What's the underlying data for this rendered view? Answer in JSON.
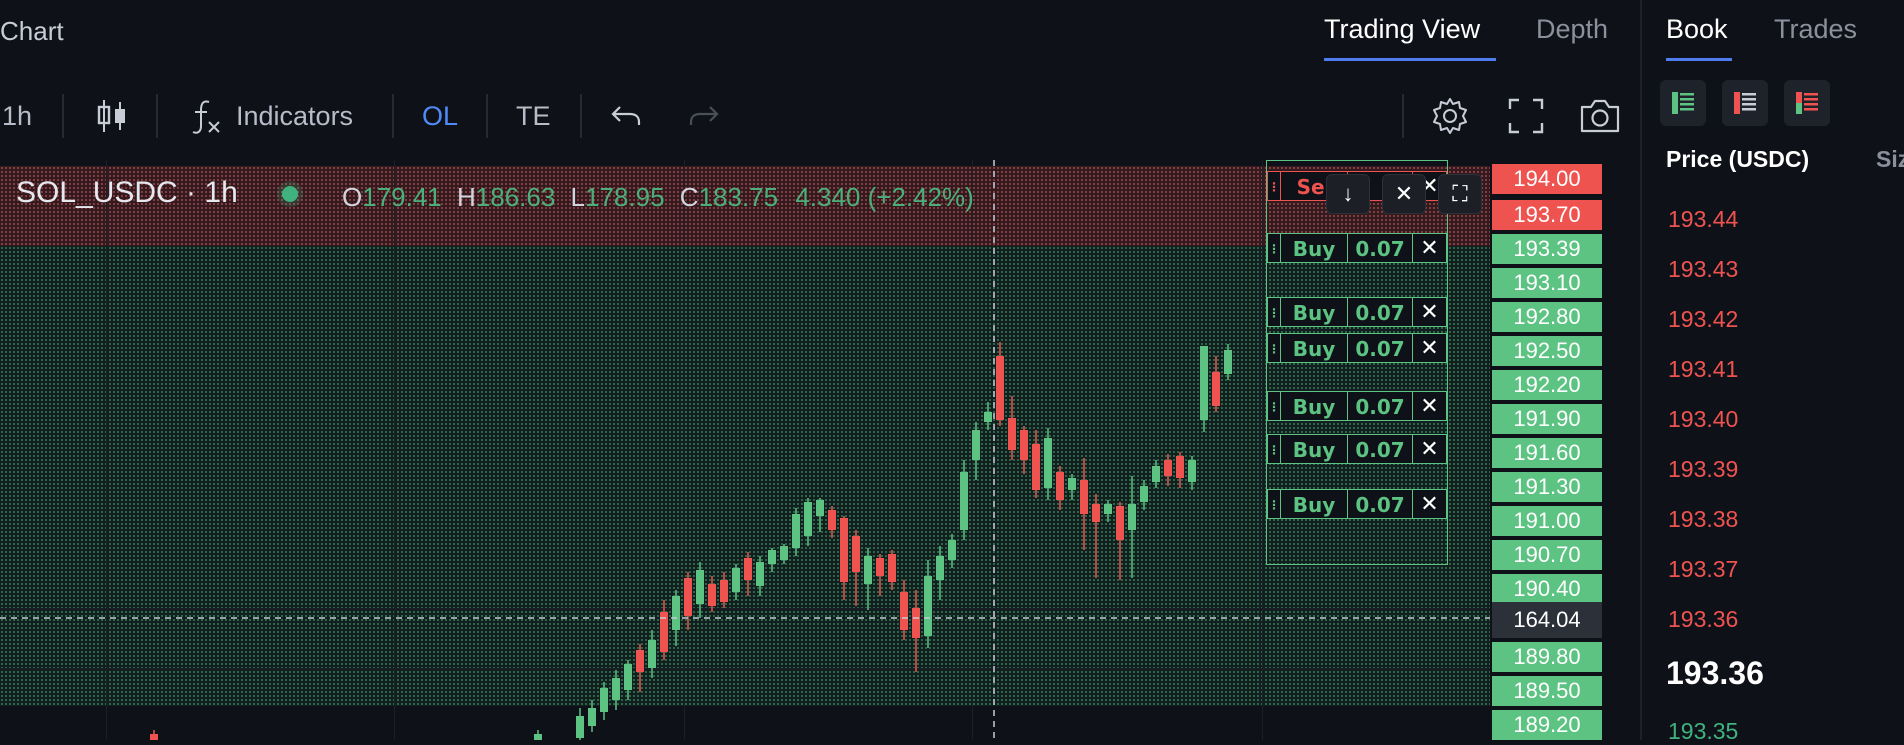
{
  "header": {
    "chart_label": "Chart",
    "tabs": [
      {
        "label": "Trading View",
        "active": true
      },
      {
        "label": "Depth",
        "active": false
      }
    ]
  },
  "toolbar": {
    "interval": "1h",
    "indicators_label": "Indicators",
    "ol_label": "OL",
    "te_label": "TE"
  },
  "legend": {
    "symbol": "SOL_USDC · 1h",
    "open_key": "O",
    "open": "179.41",
    "high_key": "H",
    "high": "186.63",
    "low_key": "L",
    "low": "178.95",
    "close_key": "C",
    "close": "183.75",
    "change": "4.340 (+2.42%)"
  },
  "price_axis": [
    {
      "label": "194.00",
      "style": "red"
    },
    {
      "label": "193.70",
      "style": "red"
    },
    {
      "label": "193.39",
      "style": "green"
    },
    {
      "label": "193.10",
      "style": "green"
    },
    {
      "label": "192.80",
      "style": "green"
    },
    {
      "label": "192.50",
      "style": "green"
    },
    {
      "label": "192.20",
      "style": "green"
    },
    {
      "label": "191.90",
      "style": "green"
    },
    {
      "label": "191.60",
      "style": "green"
    },
    {
      "label": "191.30",
      "style": "green"
    },
    {
      "label": "191.00",
      "style": "green"
    },
    {
      "label": "190.70",
      "style": "green"
    },
    {
      "label": "190.40",
      "style": "green"
    },
    {
      "label": "164.04",
      "style": "dark"
    },
    {
      "label": "189.80",
      "style": "green"
    },
    {
      "label": "189.50",
      "style": "green"
    },
    {
      "label": "189.20",
      "style": "green"
    }
  ],
  "orders": {
    "sell_label": "Sel",
    "rows": [
      {
        "side": "Buy",
        "qty": "0.07"
      },
      {
        "side": "Buy",
        "qty": "0.07"
      },
      {
        "side": "Buy",
        "qty": "0.07"
      },
      {
        "side": "Buy",
        "qty": "0.07"
      },
      {
        "side": "Buy",
        "qty": "0.07"
      },
      {
        "side": "Buy",
        "qty": "0.07"
      }
    ]
  },
  "book": {
    "tabs": [
      {
        "label": "Book",
        "active": true
      },
      {
        "label": "Trades",
        "active": false
      }
    ],
    "price_header": "Price (USDC)",
    "size_header": "Siz",
    "asks": [
      "193.44",
      "193.43",
      "193.42",
      "193.41",
      "193.40",
      "193.39",
      "193.38",
      "193.37",
      "193.36"
    ],
    "mid": "193.36",
    "bid_first": "193.35"
  },
  "colors": {
    "up": "#5cc382",
    "down": "#ef5350",
    "accent": "#4f7df0",
    "background": "#0f1118"
  }
}
